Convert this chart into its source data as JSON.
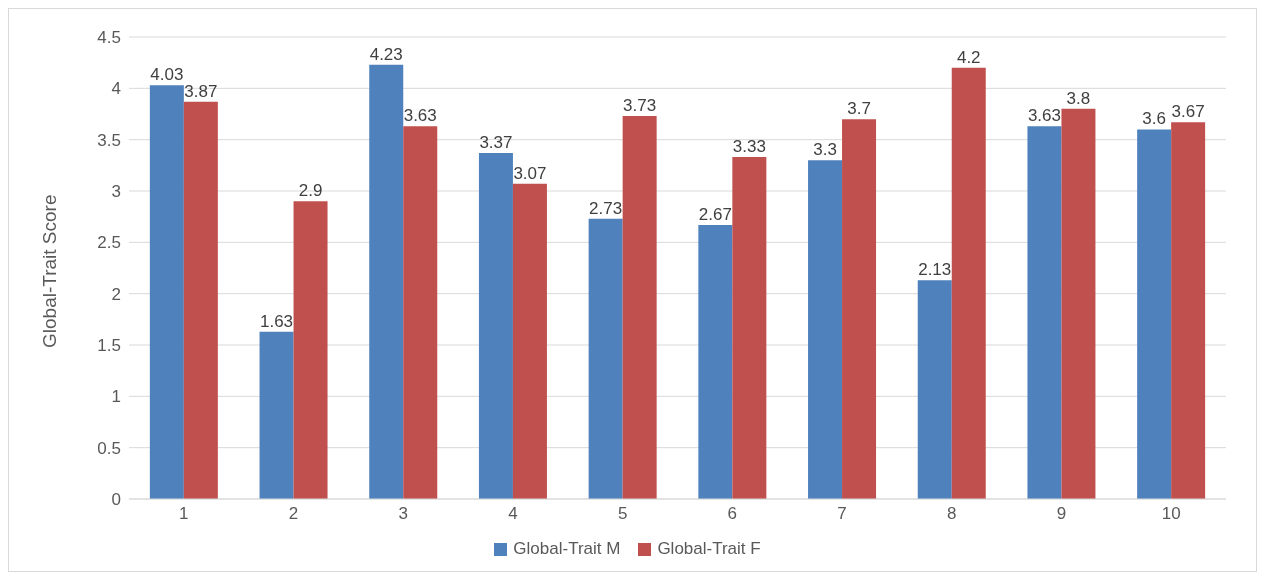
{
  "chart_data": {
    "type": "bar",
    "ylabel": "Global-Trait Score",
    "categories": [
      "1",
      "2",
      "3",
      "4",
      "5",
      "6",
      "7",
      "8",
      "9",
      "10"
    ],
    "series": [
      {
        "name": "Global-Trait M",
        "color": "#4f81bd",
        "values": [
          4.03,
          1.63,
          4.23,
          3.37,
          2.73,
          2.67,
          3.3,
          2.13,
          3.63,
          3.6
        ]
      },
      {
        "name": "Global-Trait F",
        "color": "#c0504d",
        "values": [
          3.87,
          2.9,
          3.63,
          3.07,
          3.73,
          3.33,
          3.7,
          4.2,
          3.8,
          3.67
        ]
      }
    ],
    "ylim": [
      0,
      4.5
    ],
    "yticks": [
      0,
      0.5,
      1,
      1.5,
      2,
      2.5,
      3,
      3.5,
      4,
      4.5
    ],
    "grid": "y",
    "legend": "bottom",
    "data_labels": true
  }
}
